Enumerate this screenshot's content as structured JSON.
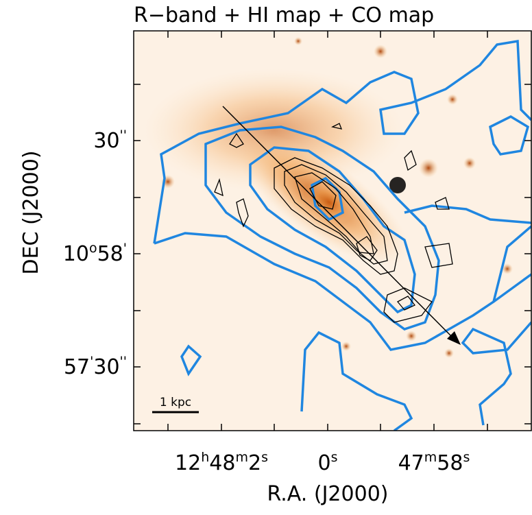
{
  "title": "R−band + HI map + CO map",
  "x_axis": {
    "label": "R.A. (J2000)",
    "ticks": [
      [
        "12",
        "h",
        "48",
        "m",
        "2",
        "s"
      ],
      [
        "0",
        "s"
      ],
      [
        "47",
        "m",
        "58",
        "s"
      ]
    ]
  },
  "y_axis": {
    "label": "DEC (J2000)",
    "ticks": [
      [
        "30",
        "''"
      ],
      [
        "10",
        "o",
        "58",
        "'"
      ],
      [
        "57",
        "'",
        "30",
        "''"
      ]
    ]
  },
  "scale_bar": "1 kpc"
}
